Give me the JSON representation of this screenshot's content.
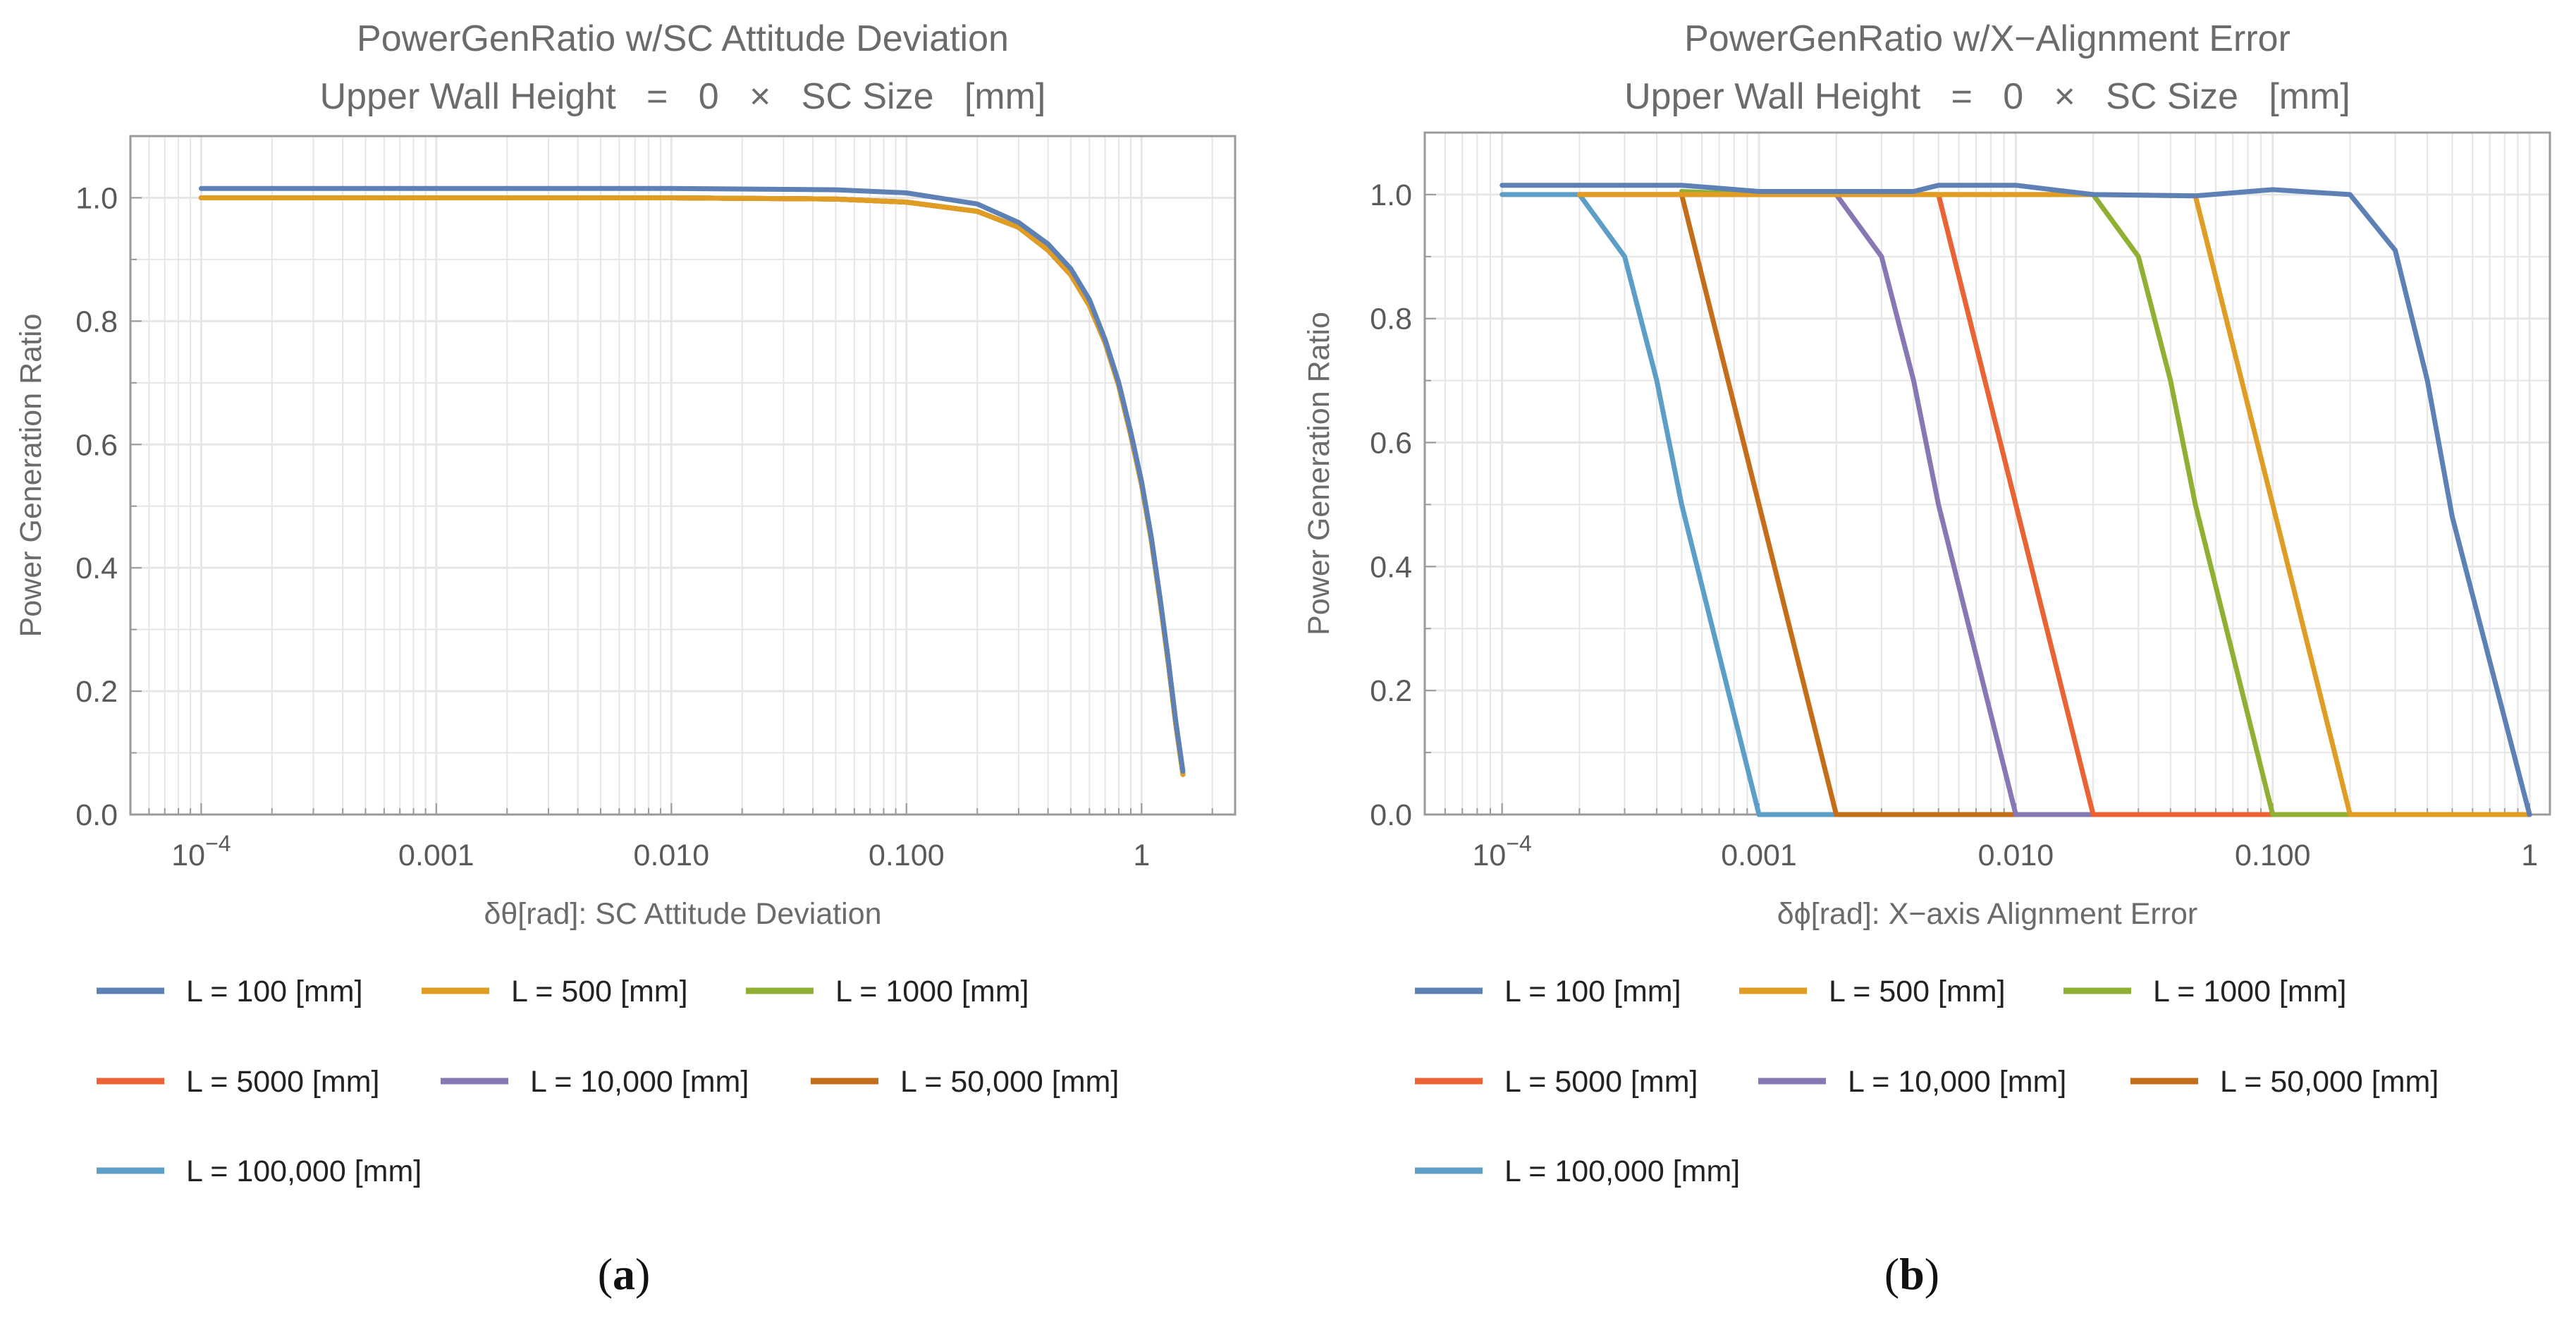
{
  "figure": {
    "captions": [
      "(a)",
      "(b)"
    ]
  },
  "colors": {
    "series": [
      "#5e81b5",
      "#e19c24",
      "#8fb032",
      "#eb6235",
      "#8778b3",
      "#c56e1a",
      "#5d9ec7"
    ],
    "grid": "#e6e6e6",
    "frame": "#9a9a9a",
    "text": "#6b6b6b"
  },
  "legend_labels": [
    "L = 100 [mm]",
    "L = 500 [mm]",
    "L = 1000 [mm]",
    "L = 5000 [mm]",
    "L = 10,000 [mm]",
    "L = 50,000 [mm]",
    "L = 100,000 [mm]"
  ],
  "chart_data": [
    {
      "type": "line",
      "title": "PowerGenRatio w/SC Attitude Deviation",
      "subtitle": "Upper Wall Height   =   0   ×   SC Size   [mm]",
      "xlabel": "δθ[rad]: SC Attitude Deviation",
      "ylabel": "Power Generation Ratio",
      "xscale": "log",
      "xlim": [
        5e-05,
        2.5
      ],
      "ylim": [
        0,
        1.1
      ],
      "xticks": [
        {
          "value": 0.0001,
          "label": "10",
          "sup": "−4"
        },
        {
          "value": 0.001,
          "label": "0.001",
          "sup": ""
        },
        {
          "value": 0.01,
          "label": "0.010",
          "sup": ""
        },
        {
          "value": 0.1,
          "label": "0.100",
          "sup": ""
        },
        {
          "value": 1,
          "label": "1",
          "sup": ""
        }
      ],
      "yticks": [
        {
          "value": 0,
          "label": "0.0"
        },
        {
          "value": 0.2,
          "label": "0.2"
        },
        {
          "value": 0.4,
          "label": "0.4"
        },
        {
          "value": 0.6,
          "label": "0.6"
        },
        {
          "value": 0.8,
          "label": "0.8"
        },
        {
          "value": 1.0,
          "label": "1.0"
        }
      ],
      "series": [
        {
          "name": "L = 100 [mm]",
          "points": [
            [
              0.0001,
              1.015
            ],
            [
              0.001,
              1.015
            ],
            [
              0.01,
              1.015
            ],
            [
              0.05,
              1.013
            ],
            [
              0.1,
              1.008
            ],
            [
              0.2,
              0.99
            ],
            [
              0.3,
              0.96
            ],
            [
              0.4,
              0.925
            ],
            [
              0.5,
              0.885
            ],
            [
              0.6,
              0.835
            ],
            [
              0.7,
              0.77
            ],
            [
              0.8,
              0.7
            ],
            [
              0.9,
              0.62
            ],
            [
              1.0,
              0.54
            ],
            [
              1.1,
              0.45
            ],
            [
              1.2,
              0.35
            ],
            [
              1.3,
              0.25
            ],
            [
              1.4,
              0.15
            ],
            [
              1.5,
              0.07
            ]
          ]
        },
        {
          "name": "L = 500 [mm]",
          "points": [
            [
              0.0001,
              1.0
            ],
            [
              0.001,
              1.0
            ],
            [
              0.01,
              1.0
            ],
            [
              0.05,
              0.998
            ],
            [
              0.1,
              0.993
            ],
            [
              0.2,
              0.978
            ],
            [
              0.3,
              0.952
            ],
            [
              0.4,
              0.915
            ],
            [
              0.5,
              0.875
            ],
            [
              0.6,
              0.825
            ],
            [
              0.7,
              0.765
            ],
            [
              0.8,
              0.695
            ],
            [
              0.9,
              0.615
            ],
            [
              1.0,
              0.535
            ],
            [
              1.1,
              0.445
            ],
            [
              1.2,
              0.345
            ],
            [
              1.3,
              0.245
            ],
            [
              1.4,
              0.145
            ],
            [
              1.5,
              0.065
            ]
          ]
        },
        {
          "name": "L = 1000 [mm]",
          "points": [
            [
              0.0001,
              1.0
            ],
            [
              0.001,
              1.0
            ],
            [
              0.01,
              1.0
            ],
            [
              0.05,
              0.998
            ],
            [
              0.1,
              0.993
            ],
            [
              0.2,
              0.978
            ],
            [
              0.3,
              0.952
            ],
            [
              0.4,
              0.915
            ],
            [
              0.5,
              0.875
            ],
            [
              0.6,
              0.825
            ],
            [
              0.7,
              0.765
            ],
            [
              0.8,
              0.695
            ],
            [
              0.9,
              0.615
            ],
            [
              1.0,
              0.535
            ],
            [
              1.1,
              0.445
            ],
            [
              1.2,
              0.345
            ],
            [
              1.3,
              0.245
            ],
            [
              1.4,
              0.145
            ],
            [
              1.5,
              0.065
            ]
          ]
        },
        {
          "name": "L = 5000 [mm]",
          "points": [
            [
              0.0001,
              1.0
            ],
            [
              0.001,
              1.0
            ],
            [
              0.01,
              1.0
            ],
            [
              0.05,
              0.998
            ],
            [
              0.1,
              0.993
            ],
            [
              0.2,
              0.978
            ],
            [
              0.3,
              0.952
            ],
            [
              0.4,
              0.915
            ],
            [
              0.5,
              0.875
            ],
            [
              0.6,
              0.825
            ],
            [
              0.7,
              0.765
            ],
            [
              0.8,
              0.695
            ],
            [
              0.9,
              0.615
            ],
            [
              1.0,
              0.535
            ],
            [
              1.1,
              0.445
            ],
            [
              1.2,
              0.345
            ],
            [
              1.3,
              0.245
            ],
            [
              1.4,
              0.145
            ],
            [
              1.5,
              0.065
            ]
          ]
        },
        {
          "name": "L = 10,000 [mm]",
          "points": [
            [
              0.0001,
              1.0
            ],
            [
              0.001,
              1.0
            ],
            [
              0.01,
              1.0
            ],
            [
              0.05,
              0.998
            ],
            [
              0.1,
              0.993
            ],
            [
              0.2,
              0.978
            ],
            [
              0.3,
              0.952
            ],
            [
              0.4,
              0.915
            ],
            [
              0.5,
              0.875
            ],
            [
              0.6,
              0.825
            ],
            [
              0.7,
              0.765
            ],
            [
              0.8,
              0.695
            ],
            [
              0.9,
              0.615
            ],
            [
              1.0,
              0.535
            ],
            [
              1.1,
              0.445
            ],
            [
              1.2,
              0.345
            ],
            [
              1.3,
              0.245
            ],
            [
              1.4,
              0.145
            ],
            [
              1.5,
              0.065
            ]
          ]
        },
        {
          "name": "L = 50,000 [mm]",
          "points": [
            [
              0.0001,
              1.0
            ],
            [
              0.001,
              1.0
            ],
            [
              0.01,
              1.0
            ],
            [
              0.05,
              0.998
            ],
            [
              0.1,
              0.993
            ],
            [
              0.2,
              0.978
            ],
            [
              0.3,
              0.952
            ],
            [
              0.4,
              0.915
            ],
            [
              0.5,
              0.875
            ],
            [
              0.6,
              0.825
            ],
            [
              0.7,
              0.765
            ],
            [
              0.8,
              0.695
            ],
            [
              0.9,
              0.615
            ],
            [
              1.0,
              0.535
            ],
            [
              1.1,
              0.445
            ],
            [
              1.2,
              0.345
            ],
            [
              1.3,
              0.245
            ],
            [
              1.4,
              0.145
            ],
            [
              1.5,
              0.065
            ]
          ]
        },
        {
          "name": "L = 100,000 [mm]",
          "points": [
            [
              0.0001,
              1.0
            ],
            [
              0.001,
              1.0
            ],
            [
              0.01,
              1.0
            ],
            [
              0.05,
              0.998
            ],
            [
              0.1,
              0.993
            ],
            [
              0.2,
              0.978
            ],
            [
              0.3,
              0.952
            ],
            [
              0.4,
              0.915
            ],
            [
              0.5,
              0.875
            ],
            [
              0.6,
              0.825
            ],
            [
              0.7,
              0.765
            ],
            [
              0.8,
              0.695
            ],
            [
              0.9,
              0.615
            ],
            [
              1.0,
              0.535
            ],
            [
              1.1,
              0.445
            ],
            [
              1.2,
              0.345
            ],
            [
              1.3,
              0.245
            ],
            [
              1.4,
              0.145
            ],
            [
              1.5,
              0.065
            ]
          ]
        }
      ]
    },
    {
      "type": "line",
      "title": "PowerGenRatio w/X−Alignment Error",
      "subtitle": "Upper Wall Height   =   0   ×   SC Size   [mm]",
      "xlabel": "δϕ[rad]: X−axis Alignment Error",
      "ylabel": "Power Generation Ratio",
      "xscale": "log",
      "xlim": [
        5e-05,
        1.2
      ],
      "ylim": [
        0,
        1.1
      ],
      "xticks": [
        {
          "value": 0.0001,
          "label": "10",
          "sup": "−4"
        },
        {
          "value": 0.001,
          "label": "0.001",
          "sup": ""
        },
        {
          "value": 0.01,
          "label": "0.010",
          "sup": ""
        },
        {
          "value": 0.1,
          "label": "0.100",
          "sup": ""
        },
        {
          "value": 1,
          "label": "1",
          "sup": ""
        }
      ],
      "yticks": [
        {
          "value": 0,
          "label": "0.0"
        },
        {
          "value": 0.2,
          "label": "0.2"
        },
        {
          "value": 0.4,
          "label": "0.4"
        },
        {
          "value": 0.6,
          "label": "0.6"
        },
        {
          "value": 0.8,
          "label": "0.8"
        },
        {
          "value": 1.0,
          "label": "1.0"
        }
      ],
      "series": [
        {
          "name": "L = 100 [mm]",
          "points": [
            [
              0.0001,
              1.015
            ],
            [
              0.0005,
              1.015
            ],
            [
              0.001,
              1.005
            ],
            [
              0.004,
              1.005
            ],
            [
              0.005,
              1.015
            ],
            [
              0.01,
              1.015
            ],
            [
              0.02,
              1.0
            ],
            [
              0.05,
              0.998
            ],
            [
              0.1,
              1.008
            ],
            [
              0.2,
              1.0
            ],
            [
              0.3,
              0.91
            ],
            [
              0.4,
              0.7
            ],
            [
              0.5,
              0.48
            ],
            [
              1.0,
              0.0
            ]
          ]
        },
        {
          "name": "L = 500 [mm]",
          "points": [
            [
              0.0002,
              1.0
            ],
            [
              0.0005,
              1.0
            ],
            [
              0.001,
              1.0
            ],
            [
              0.01,
              1.0
            ],
            [
              0.02,
              1.0
            ],
            [
              0.05,
              0.998
            ],
            [
              0.1,
              0.5
            ],
            [
              0.2,
              0.0
            ],
            [
              1.0,
              0.0
            ]
          ]
        },
        {
          "name": "L = 1000 [mm]",
          "points": [
            [
              0.0005,
              1.005
            ],
            [
              0.001,
              1.0
            ],
            [
              0.02,
              1.0
            ],
            [
              0.03,
              0.9
            ],
            [
              0.04,
              0.7
            ],
            [
              0.05,
              0.5
            ],
            [
              0.1,
              0.0
            ],
            [
              1.0,
              0.0
            ]
          ]
        },
        {
          "name": "L = 5000 [mm]",
          "points": [
            [
              0.0002,
              1.0
            ],
            [
              0.001,
              1.0
            ],
            [
              0.005,
              1.0
            ],
            [
              0.01,
              0.5
            ],
            [
              0.02,
              0.0
            ],
            [
              1.0,
              0.0
            ]
          ]
        },
        {
          "name": "L = 10,000 [mm]",
          "points": [
            [
              0.0005,
              1.0
            ],
            [
              0.002,
              1.0
            ],
            [
              0.003,
              0.9
            ],
            [
              0.004,
              0.7
            ],
            [
              0.005,
              0.5
            ],
            [
              0.01,
              0.0
            ],
            [
              1.0,
              0.0
            ]
          ]
        },
        {
          "name": "L = 50,000 [mm]",
          "points": [
            [
              0.0002,
              1.0
            ],
            [
              0.0005,
              1.0
            ],
            [
              0.001,
              0.5
            ],
            [
              0.002,
              0.0
            ],
            [
              1.0,
              0.0
            ]
          ]
        },
        {
          "name": "L = 100,000 [mm]",
          "points": [
            [
              0.0001,
              1.0
            ],
            [
              0.0002,
              1.0
            ],
            [
              0.0003,
              0.9
            ],
            [
              0.0004,
              0.7
            ],
            [
              0.0005,
              0.5
            ],
            [
              0.001,
              0.0
            ],
            [
              1.0,
              0.0
            ]
          ]
        }
      ]
    }
  ]
}
